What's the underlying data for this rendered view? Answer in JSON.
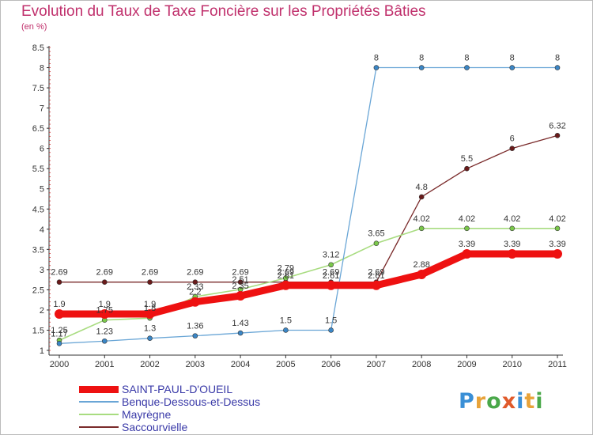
{
  "header": {
    "title": "Evolution du Taux de Taxe Foncière sur les Propriétés Bâties",
    "unit": "(en %)"
  },
  "brand": {
    "text": "Proxiti",
    "colors": [
      "#3a8fd6",
      "#e8a33a",
      "#4aa84a",
      "#e05a2a",
      "#3a8fd6",
      "#e8a33a",
      "#4aa84a"
    ]
  },
  "chart_data": {
    "type": "line",
    "title": "Evolution du Taux de Taxe Foncière sur les Propriétés Bâties",
    "ylabel": "(en %)",
    "xlabel": "",
    "ylim": [
      1,
      8.5
    ],
    "yticks": [
      "1",
      "1.5",
      "2",
      "2.5",
      "3",
      "3.5",
      "4",
      "4.5",
      "5",
      "5.5",
      "6",
      "6.5",
      "7",
      "7.5",
      "8",
      "8.5"
    ],
    "categories": [
      "2000",
      "2001",
      "2002",
      "2003",
      "2004",
      "2005",
      "2006",
      "2007",
      "2008",
      "2009",
      "2010",
      "2011"
    ],
    "grid": false,
    "legend": "bottom-left",
    "series": [
      {
        "name": "Saccourvielle",
        "color": "#7a2a2a",
        "marker": "#6a1a1a",
        "width": 1.3,
        "values": [
          2.69,
          2.69,
          2.69,
          2.69,
          2.69,
          2.69,
          2.69,
          2.69,
          4.8,
          5.5,
          6,
          6.32
        ],
        "labels": [
          "2.69",
          "2.69",
          "2.69",
          "2.69",
          "2.69",
          "2.69",
          "2.69",
          "2.69",
          "4.8",
          "5.5",
          "6",
          "6.32"
        ]
      },
      {
        "name": "Mayrègne",
        "color": "#a8dc80",
        "marker": "#7ac84a",
        "width": 1.6,
        "values": [
          1.25,
          1.75,
          1.8,
          2.33,
          2.51,
          2.79,
          3.12,
          3.65,
          4.02,
          4.02,
          4.02,
          4.02
        ],
        "labels": [
          "1.25",
          "1.75",
          "1.8",
          "2.33",
          "2.51",
          "2.79",
          "3.12",
          "3.65",
          "4.02",
          "4.02",
          "4.02",
          "4.02"
        ]
      },
      {
        "name": "Benque-Dessous-et-Dessus",
        "color": "#6aa6d6",
        "marker": "#3a86c6",
        "width": 1.3,
        "values": [
          1.17,
          1.23,
          1.3,
          1.36,
          1.43,
          1.5,
          1.5,
          8,
          8,
          8,
          8,
          8
        ],
        "labels": [
          "1.17",
          "1.23",
          "1.3",
          "1.36",
          "1.43",
          "1.5",
          "1.5",
          "8",
          "8",
          "8",
          "8",
          "8"
        ]
      },
      {
        "name": "SAINT-PAUL-D'OUEIL",
        "color": "#ee1111",
        "marker": "#ee1111",
        "width": 9,
        "values": [
          1.9,
          1.9,
          1.9,
          2.2,
          2.35,
          2.61,
          2.61,
          2.61,
          2.88,
          3.39,
          3.39,
          3.39
        ],
        "labels": [
          "1.9",
          "1.9",
          "1.9",
          "2.2",
          "2.35",
          "2.61",
          "2.61",
          "2.61",
          "2.88",
          "3.39",
          "3.39",
          "3.39"
        ]
      }
    ]
  },
  "legend": {
    "items": [
      {
        "label": "SAINT-PAUL-D'OUEIL",
        "color": "#ee1111"
      },
      {
        "label": "Benque-Dessous-et-Dessus",
        "color": "#6aa6d6"
      },
      {
        "label": "Mayrègne",
        "color": "#a8dc80"
      },
      {
        "label": "Saccourvielle",
        "color": "#7a2a2a"
      }
    ]
  }
}
